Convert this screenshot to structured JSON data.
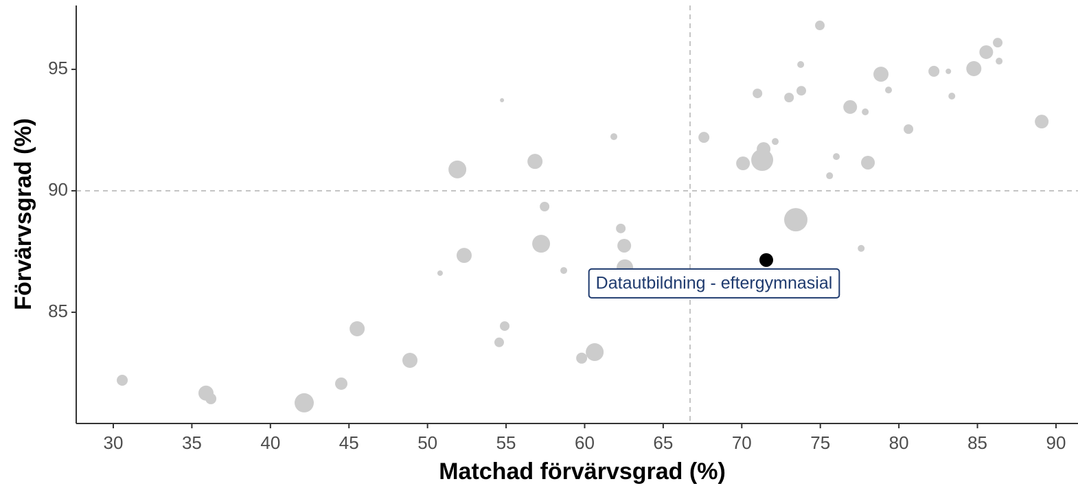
{
  "chart_data": {
    "type": "scatter",
    "x_label": "Matchad förvärvsgrad (%)",
    "y_label": "Förvärvsgrad (%)",
    "x": [
      30.57,
      35.9,
      36.21,
      42.15,
      44.51,
      45.52,
      48.88,
      50.8,
      52.33,
      51.9,
      54.74,
      54.56,
      54.91,
      56.84,
      57.23,
      57.45,
      58.67,
      59.81,
      60.64,
      61.86,
      62.3,
      62.52,
      62.56,
      67.59,
      70.08,
      71.0,
      71.39,
      71.3,
      72.13,
      73.01,
      73.44,
      73.75,
      73.79,
      74.97,
      75.59,
      76.02,
      76.9,
      77.6,
      77.86,
      78.03,
      78.86,
      79.34,
      80.61,
      82.23,
      83.15,
      83.37,
      84.77,
      85.56,
      86.29,
      86.38,
      89.09
    ],
    "values": [
      82.2,
      81.67,
      81.44,
      81.27,
      82.06,
      84.32,
      83.02,
      86.61,
      87.34,
      90.88,
      93.73,
      83.76,
      84.43,
      91.21,
      87.82,
      89.35,
      86.72,
      83.11,
      83.36,
      92.23,
      88.45,
      87.74,
      86.84,
      92.2,
      91.13,
      94.01,
      91.72,
      91.27,
      92.03,
      93.84,
      88.81,
      95.2,
      94.12,
      96.81,
      90.62,
      91.41,
      93.45,
      87.63,
      93.25,
      91.16,
      94.8,
      94.15,
      92.54,
      94.92,
      94.92,
      93.9,
      95.03,
      95.71,
      96.1,
      95.34,
      92.85
    ],
    "sizes": [
      64,
      121,
      64,
      196,
      81,
      121,
      121,
      16,
      121,
      169,
      9,
      49,
      49,
      121,
      169,
      49,
      25,
      64,
      169,
      25,
      49,
      100,
      144,
      64,
      100,
      49,
      100,
      256,
      25,
      49,
      289,
      25,
      49,
      49,
      25,
      25,
      100,
      25,
      25,
      100,
      121,
      25,
      49,
      64,
      16,
      25,
      121,
      100,
      49,
      25,
      100
    ],
    "color": "#cccccc",
    "highlight": {
      "label": "Datautbildning - eftergymnasial",
      "x": 71.56,
      "y": 87.15,
      "size": 100,
      "color": "#000000"
    },
    "vline": 66.71,
    "hline": 90,
    "xlim": [
      27.64,
      91.4
    ],
    "ylim": [
      80.42,
      97.63
    ],
    "xticks": [
      30,
      35,
      40,
      45,
      50,
      55,
      60,
      65,
      70,
      75,
      80,
      85,
      90
    ],
    "yticks": [
      85,
      90,
      95
    ]
  }
}
